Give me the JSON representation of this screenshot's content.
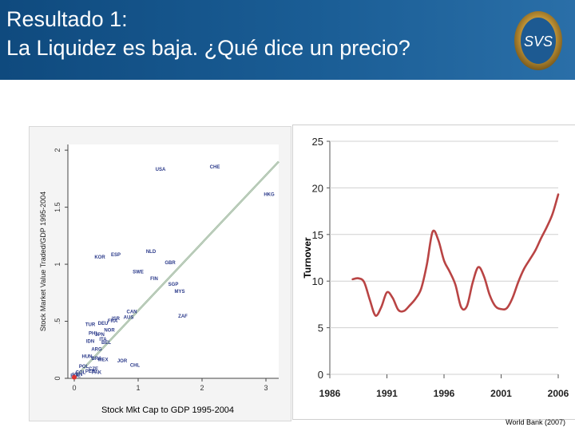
{
  "header": {
    "title_line1": "Resultado 1:",
    "title_line2": "La Liquidez es baja. ¿Qué dice un precio?",
    "logo_text": "SVS"
  },
  "colors": {
    "header_bg": "#1a5d95",
    "line_color": "#b94444",
    "fit_line": "#7fae7f",
    "point_color": "#2b3a8a"
  },
  "caption": "Stock Mkt Cap to GDP 1995-2004",
  "source": "World Bank (2007)",
  "chart_data": [
    {
      "type": "scatter",
      "title": "",
      "xlabel": "Stock Mkt Cap to GDP 1995-2004",
      "ylabel": "Stock Market Value Traded/GDP 1995-2004",
      "xlim": [
        -0.1,
        3.2
      ],
      "ylim": [
        0,
        2.05
      ],
      "xticks": [
        "0",
        "1",
        "2",
        "3"
      ],
      "yticks": [
        "0",
        ".5",
        "1",
        "1.5",
        "2"
      ],
      "points": [
        {
          "label": "USA",
          "x": 1.35,
          "y": 1.82
        },
        {
          "label": "CHE",
          "x": 2.2,
          "y": 1.84
        },
        {
          "label": "HKG",
          "x": 3.05,
          "y": 1.6
        },
        {
          "label": "NLD",
          "x": 1.2,
          "y": 1.1
        },
        {
          "label": "KOR",
          "x": 0.4,
          "y": 1.05
        },
        {
          "label": "ESP",
          "x": 0.65,
          "y": 1.07
        },
        {
          "label": "GBR",
          "x": 1.5,
          "y": 1.0
        },
        {
          "label": "SWE",
          "x": 1.0,
          "y": 0.92
        },
        {
          "label": "FIN",
          "x": 1.25,
          "y": 0.86
        },
        {
          "label": "SGP",
          "x": 1.55,
          "y": 0.81
        },
        {
          "label": "MYS",
          "x": 1.65,
          "y": 0.75
        },
        {
          "label": "ZAF",
          "x": 1.7,
          "y": 0.53
        },
        {
          "label": "CAN",
          "x": 0.9,
          "y": 0.57
        },
        {
          "label": "AUS",
          "x": 0.85,
          "y": 0.52
        },
        {
          "label": "ISR",
          "x": 0.65,
          "y": 0.51
        },
        {
          "label": "TUR",
          "x": 0.25,
          "y": 0.46
        },
        {
          "label": "DEU",
          "x": 0.45,
          "y": 0.47
        },
        {
          "label": "FRA",
          "x": 0.6,
          "y": 0.49
        },
        {
          "label": "NOR",
          "x": 0.55,
          "y": 0.41
        },
        {
          "label": "PHL",
          "x": 0.3,
          "y": 0.38
        },
        {
          "label": "JPN",
          "x": 0.4,
          "y": 0.37
        },
        {
          "label": "IDN",
          "x": 0.25,
          "y": 0.31
        },
        {
          "label": "ITA",
          "x": 0.45,
          "y": 0.33
        },
        {
          "label": "BEL",
          "x": 0.5,
          "y": 0.3
        },
        {
          "label": "ARG",
          "x": 0.35,
          "y": 0.24
        },
        {
          "label": "HUN",
          "x": 0.2,
          "y": 0.18
        },
        {
          "label": "BRA",
          "x": 0.35,
          "y": 0.16
        },
        {
          "label": "MEX",
          "x": 0.45,
          "y": 0.15
        },
        {
          "label": "JOR",
          "x": 0.75,
          "y": 0.14
        },
        {
          "label": "CHL",
          "x": 0.95,
          "y": 0.1
        },
        {
          "label": "POL",
          "x": 0.15,
          "y": 0.09
        },
        {
          "label": "CZE",
          "x": 0.3,
          "y": 0.07
        },
        {
          "label": "PER",
          "x": 0.25,
          "y": 0.05
        },
        {
          "label": "COL",
          "x": 0.1,
          "y": 0.04
        },
        {
          "label": "VEN",
          "x": 0.05,
          "y": 0.02
        },
        {
          "label": "BOL",
          "x": 0.02,
          "y": 0.01
        },
        {
          "label": "PAK",
          "x": 0.35,
          "y": 0.04
        }
      ],
      "fit_line": {
        "x": [
          0,
          3.2
        ],
        "y": [
          0,
          1.9
        ]
      }
    },
    {
      "type": "line",
      "title": "",
      "xlabel": "",
      "ylabel": "Turnover",
      "xlim": [
        1986,
        2006
      ],
      "ylim": [
        0,
        25
      ],
      "xticks": [
        "1986",
        "1991",
        "1996",
        "2001",
        "2006"
      ],
      "yticks": [
        "0",
        "5",
        "10",
        "15",
        "20",
        "25"
      ],
      "series": [
        {
          "x": [
            1988,
            1988.5,
            1989,
            1989.5,
            1990,
            1990.5,
            1991,
            1991.5,
            1992,
            1992.5,
            1993,
            1993.5,
            1994,
            1994.5,
            1995,
            1995.5,
            1996,
            1996.5,
            1997,
            1997.5,
            1998,
            1998.5,
            1999,
            1999.5,
            2000,
            2000.5,
            2001,
            2001.5,
            2002,
            2002.5,
            2003,
            2003.5,
            2004,
            2004.5,
            2005,
            2005.5,
            2006
          ],
          "y": [
            10.2,
            10.3,
            9.9,
            8.0,
            6.3,
            7.2,
            8.8,
            8.2,
            6.9,
            6.8,
            7.4,
            8.1,
            9.2,
            11.8,
            15.3,
            14.4,
            12.2,
            11.0,
            9.6,
            7.2,
            7.3,
            9.8,
            11.5,
            10.5,
            8.5,
            7.3,
            7.0,
            7.1,
            8.2,
            9.9,
            11.3,
            12.3,
            13.3,
            14.6,
            15.8,
            17.2,
            19.3
          ]
        }
      ]
    }
  ]
}
